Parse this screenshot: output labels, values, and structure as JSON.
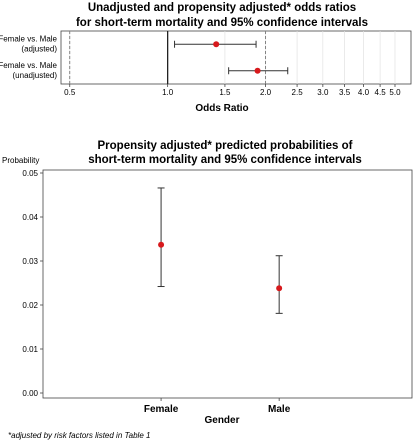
{
  "chart_data": [
    {
      "type": "forest",
      "title_lines": [
        "Unadjusted and propensity adjusted* odds ratios",
        "for short-term mortality and 95% confidence intervals"
      ],
      "xlabel": "Odds Ratio",
      "x_scale": "log",
      "xlim": [
        0.47,
        5.6
      ],
      "x_ticks": [
        0.5,
        1.0,
        1.5,
        2.0,
        2.5,
        3.0,
        3.5,
        4.0,
        4.5,
        5.0
      ],
      "x_tick_labels": [
        "0.5",
        "1.0",
        "1.5",
        "2.0",
        "2.5",
        "3.0",
        "3.5",
        "4.0",
        "4.5",
        "5.0"
      ],
      "reference_line": 1.0,
      "dashed_lines": [
        0.5,
        2.0
      ],
      "rows": [
        {
          "label_lines": [
            "Female vs. Male",
            "(adjusted)"
          ],
          "estimate": 1.41,
          "ci_low": 1.05,
          "ci_high": 1.87
        },
        {
          "label_lines": [
            "Female vs. Male",
            "(unadjusted)"
          ],
          "estimate": 1.89,
          "ci_low": 1.54,
          "ci_high": 2.34
        }
      ],
      "marker_color": "#d7191c"
    },
    {
      "type": "errorbar",
      "title_lines": [
        "Propensity adjusted* predicted probabilities of",
        "short-term mortality and 95% confidence intervals"
      ],
      "ylabel": "Probability",
      "xlabel": "Gender",
      "categories": [
        "Female",
        "Male"
      ],
      "estimates": [
        0.0337,
        0.0238
      ],
      "ci_low": [
        0.0242,
        0.0181
      ],
      "ci_high": [
        0.0466,
        0.0312
      ],
      "ylim": [
        0.0,
        0.05
      ],
      "y_ticks": [
        0.0,
        0.01,
        0.02,
        0.03,
        0.04,
        0.05
      ],
      "y_tick_labels": [
        "0.00",
        "0.01",
        "0.02",
        "0.03",
        "0.04",
        "0.05"
      ],
      "marker_color": "#d7191c"
    }
  ],
  "footnote": "*adjusted by risk factors listed in Table 1"
}
